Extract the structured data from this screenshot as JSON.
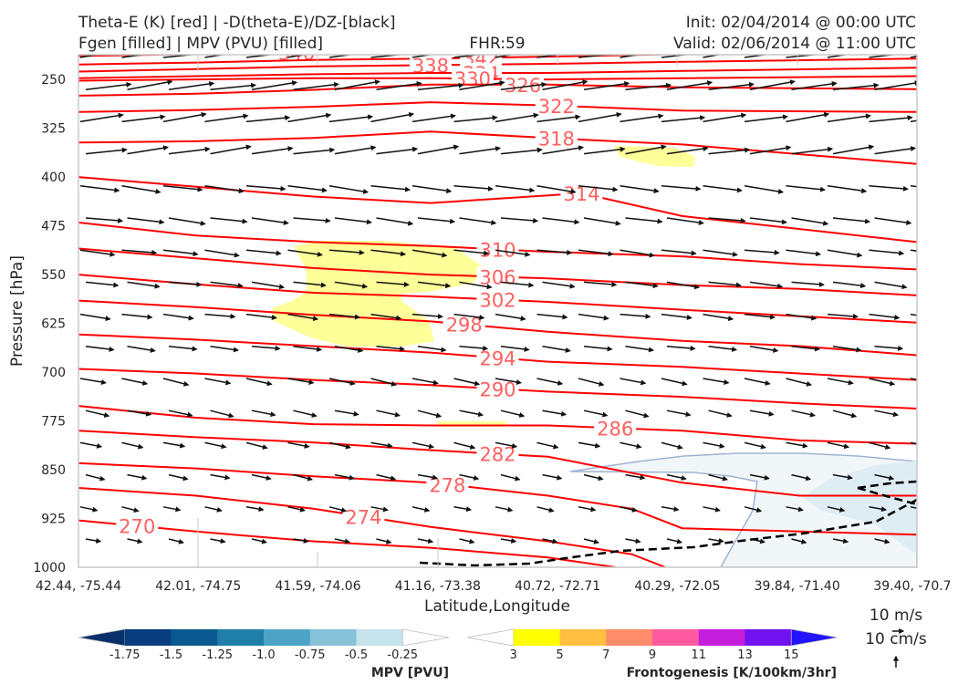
{
  "header": {
    "left_line1": "Theta-E (K) [red] | -D(theta-E)/DZ-[black]",
    "left_line2": "Fgen [filled] | MPV (PVU) [filled]",
    "center": "FHR:59",
    "right_line1": "Init: 02/04/2014 @ 00:00 UTC",
    "right_line2": "Valid: 02/06/2014 @ 11:00 UTC"
  },
  "chart_data": {
    "type": "cross-section",
    "xlabel": "Latitude,Longitude",
    "ylabel": "Pressure [hPa]",
    "x_ticks": [
      "42.44, -75.44",
      "42.01, -74.75",
      "41.59, -74.06",
      "41.16, -73.38",
      "40.72, -72.71",
      "40.29, -72.05",
      "39.84, -71.40",
      "39.40, -70.7"
    ],
    "y_ticks": [
      250,
      325,
      400,
      475,
      550,
      625,
      700,
      775,
      850,
      925,
      1000
    ],
    "ylim": [
      1000,
      200
    ],
    "theta_e_contours": [
      {
        "label": "346",
        "points": [
          [
            0,
            214
          ],
          [
            14,
            211
          ],
          [
            28,
            208
          ],
          [
            42,
            205
          ],
          [
            58,
            202
          ],
          [
            72,
            200
          ]
        ]
      },
      {
        "label": "342",
        "points": [
          [
            0,
            227
          ],
          [
            14,
            224
          ],
          [
            28,
            220
          ],
          [
            42,
            218
          ],
          [
            56,
            215
          ],
          [
            72,
            211
          ],
          [
            100,
            206
          ]
        ]
      },
      {
        "label": "338",
        "points": [
          [
            0,
            238
          ],
          [
            14,
            234
          ],
          [
            28,
            230
          ],
          [
            42,
            228
          ],
          [
            56,
            226
          ],
          [
            72,
            223
          ],
          [
            100,
            218
          ]
        ]
      },
      {
        "label": "334",
        "points": [
          [
            0,
            248
          ],
          [
            14,
            245
          ],
          [
            28,
            242
          ],
          [
            42,
            240
          ],
          [
            56,
            240
          ],
          [
            72,
            237
          ],
          [
            100,
            232
          ]
        ]
      },
      {
        "label": "330",
        "points": [
          [
            0,
            252
          ],
          [
            14,
            250
          ],
          [
            28,
            248
          ],
          [
            42,
            248
          ],
          [
            56,
            250
          ],
          [
            72,
            248
          ],
          [
            100,
            245
          ]
        ]
      },
      {
        "label": "326",
        "points": [
          [
            0,
            275
          ],
          [
            14,
            272
          ],
          [
            28,
            266
          ],
          [
            42,
            258
          ],
          [
            56,
            258
          ],
          [
            72,
            262
          ],
          [
            100,
            265
          ]
        ]
      },
      {
        "label": "322",
        "points": [
          [
            0,
            300
          ],
          [
            14,
            297
          ],
          [
            28,
            292
          ],
          [
            42,
            285
          ],
          [
            56,
            290
          ],
          [
            72,
            298
          ],
          [
            100,
            300
          ]
        ]
      },
      {
        "label": "318",
        "points": [
          [
            0,
            347
          ],
          [
            14,
            345
          ],
          [
            28,
            340
          ],
          [
            42,
            330
          ],
          [
            56,
            340
          ],
          [
            72,
            350
          ],
          [
            100,
            380
          ]
        ]
      },
      {
        "label": "314",
        "points": [
          [
            0,
            400
          ],
          [
            14,
            415
          ],
          [
            28,
            430
          ],
          [
            42,
            440
          ],
          [
            60,
            425
          ],
          [
            72,
            460
          ],
          [
            86,
            480
          ],
          [
            100,
            500
          ]
        ]
      },
      {
        "label": "310",
        "points": [
          [
            0,
            470
          ],
          [
            14,
            490
          ],
          [
            28,
            500
          ],
          [
            42,
            506
          ],
          [
            56,
            515
          ],
          [
            72,
            522
          ],
          [
            86,
            534
          ],
          [
            100,
            542
          ]
        ]
      },
      {
        "label": "306",
        "points": [
          [
            0,
            510
          ],
          [
            14,
            525
          ],
          [
            28,
            540
          ],
          [
            42,
            550
          ],
          [
            56,
            556
          ],
          [
            72,
            566
          ],
          [
            86,
            572
          ],
          [
            100,
            582
          ]
        ]
      },
      {
        "label": "302",
        "points": [
          [
            0,
            550
          ],
          [
            14,
            565
          ],
          [
            28,
            578
          ],
          [
            42,
            584
          ],
          [
            56,
            592
          ],
          [
            72,
            604
          ],
          [
            86,
            614
          ],
          [
            100,
            624
          ]
        ]
      },
      {
        "label": "298",
        "points": [
          [
            0,
            590
          ],
          [
            14,
            600
          ],
          [
            28,
            612
          ],
          [
            42,
            622
          ],
          [
            56,
            638
          ],
          [
            72,
            652
          ],
          [
            86,
            660
          ],
          [
            100,
            674
          ]
        ]
      },
      {
        "label": "294",
        "points": [
          [
            0,
            642
          ],
          [
            14,
            650
          ],
          [
            28,
            660
          ],
          [
            42,
            670
          ],
          [
            56,
            684
          ],
          [
            72,
            692
          ],
          [
            86,
            702
          ],
          [
            100,
            712
          ]
        ]
      },
      {
        "label": "290",
        "points": [
          [
            0,
            695
          ],
          [
            14,
            702
          ],
          [
            28,
            712
          ],
          [
            42,
            720
          ],
          [
            56,
            730
          ],
          [
            72,
            738
          ],
          [
            86,
            748
          ],
          [
            100,
            756
          ]
        ]
      },
      {
        "label": "286",
        "points": [
          [
            0,
            752
          ],
          [
            14,
            770
          ],
          [
            28,
            780
          ],
          [
            42,
            782
          ],
          [
            56,
            782
          ],
          [
            72,
            790
          ],
          [
            86,
            805
          ],
          [
            100,
            810
          ]
        ]
      },
      {
        "label": "282",
        "points": [
          [
            0,
            790
          ],
          [
            14,
            800
          ],
          [
            28,
            808
          ],
          [
            42,
            820
          ],
          [
            56,
            830
          ],
          [
            62,
            845
          ],
          [
            72,
            870
          ],
          [
            86,
            890
          ],
          [
            100,
            890
          ]
        ]
      },
      {
        "label": "278",
        "points": [
          [
            0,
            840
          ],
          [
            14,
            848
          ],
          [
            28,
            860
          ],
          [
            42,
            870
          ],
          [
            56,
            890
          ],
          [
            66,
            910
          ],
          [
            72,
            940
          ],
          [
            100,
            950
          ]
        ]
      },
      {
        "label": "274",
        "points": [
          [
            0,
            878
          ],
          [
            14,
            890
          ],
          [
            28,
            910
          ],
          [
            42,
            938
          ],
          [
            56,
            960
          ],
          [
            66,
            980
          ],
          [
            70,
            1000
          ]
        ]
      },
      {
        "label": "270",
        "points": [
          [
            0,
            928
          ],
          [
            14,
            945
          ],
          [
            28,
            960
          ],
          [
            42,
            970
          ],
          [
            56,
            985
          ],
          [
            64,
            1000
          ]
        ]
      }
    ],
    "wind_barb_grid": {
      "columns": 21,
      "rows": 16,
      "reference": [
        "10 m/s",
        "10 cm/s"
      ]
    },
    "mpv_colorbar": {
      "label": "MPV [PVU]",
      "levels": [
        "-1.75",
        "-1.5",
        "-1.25",
        "-1.0",
        "-0.75",
        "-0.5",
        "-0.25"
      ],
      "colors": [
        "#08306b",
        "#083d7f",
        "#0b5a8f",
        "#1f7fa8",
        "#4da4c6",
        "#87c1d8",
        "#c6e2ec",
        "#ffffff"
      ]
    },
    "fgen_colorbar": {
      "label": "Frontogenesis [K/100km/3hr]",
      "levels": [
        "3",
        "5",
        "7",
        "9",
        "11",
        "13",
        "15"
      ],
      "colors": [
        "#ffffff",
        "#ffff00",
        "#ffbf40",
        "#ff8c6a",
        "#ff5aa0",
        "#c41ddb",
        "#7013f0",
        "#2313ff"
      ]
    }
  }
}
